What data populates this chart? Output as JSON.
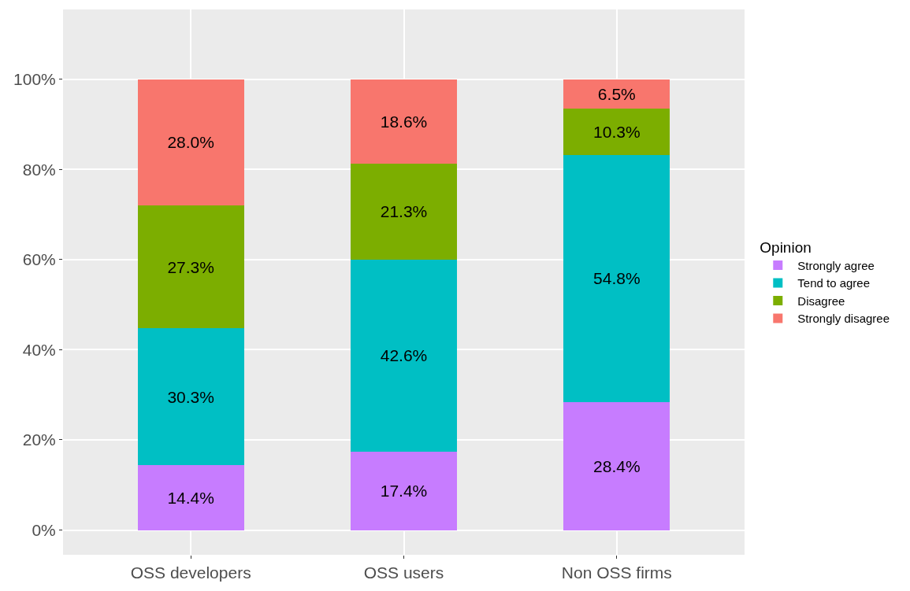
{
  "chart_data": {
    "type": "bar",
    "stacked": true,
    "legend_title": "Opinion",
    "legend": "right",
    "categories": [
      "OSS developers",
      "OSS users",
      "Non OSS firms"
    ],
    "series": [
      {
        "name": "Strongly agree",
        "color": "#c77cff",
        "values": [
          14.4,
          17.4,
          28.4
        ],
        "value_labels": [
          "14.4%",
          "17.4%",
          "28.4%"
        ]
      },
      {
        "name": "Tend to agree",
        "color": "#00bfc4",
        "values": [
          30.3,
          42.6,
          54.8
        ],
        "value_labels": [
          "30.3%",
          "42.6%",
          "54.8%"
        ]
      },
      {
        "name": "Disagree",
        "color": "#7cae00",
        "values": [
          27.3,
          21.3,
          10.3
        ],
        "value_labels": [
          "27.3%",
          "21.3%",
          "10.3%"
        ]
      },
      {
        "name": "Strongly disagree",
        "color": "#f8766d",
        "values": [
          28.0,
          18.6,
          6.5
        ],
        "value_labels": [
          "28.0%",
          "18.6%",
          "6.5%"
        ]
      }
    ],
    "ylim": [
      -5.5,
      115.5
    ],
    "yticks": [
      {
        "value": 0,
        "label": "0%"
      },
      {
        "value": 20,
        "label": "20%"
      },
      {
        "value": 40,
        "label": "40%"
      },
      {
        "value": 60,
        "label": "60%"
      },
      {
        "value": 80,
        "label": "80%"
      },
      {
        "value": 100,
        "label": "100%"
      }
    ],
    "grid": true
  }
}
